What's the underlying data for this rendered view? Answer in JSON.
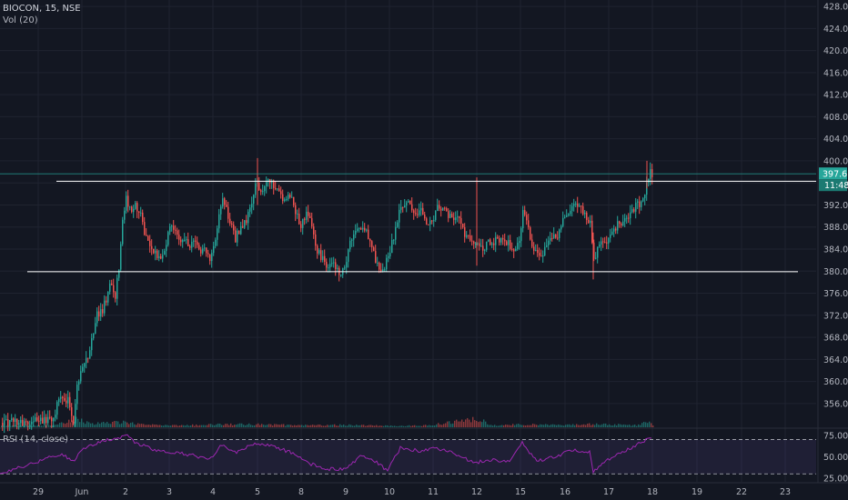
{
  "header": {
    "symbol_line": "BIOCON, 15, NSE",
    "volume_line": "Vol (20)"
  },
  "rsi_panel": {
    "label": "RSI (14, close)",
    "ticks": [
      "75.00",
      "50.00",
      "25.00"
    ]
  },
  "price_axis": {
    "ticks": [
      "428.00",
      "424.00",
      "420.00",
      "416.00",
      "412.00",
      "408.00",
      "404.00",
      "400.00",
      "396.00",
      "392.00",
      "388.00",
      "384.00",
      "380.00",
      "376.00",
      "372.00",
      "368.00",
      "364.00",
      "360.00",
      "356.00"
    ],
    "last_price_tag": "397.65",
    "countdown_tag": "11:48"
  },
  "time_axis": {
    "labels": [
      "29",
      "Jun",
      "2",
      "3",
      "4",
      "5",
      "8",
      "9",
      "10",
      "11",
      "12",
      "15",
      "16",
      "17",
      "18",
      "19",
      "22",
      "23"
    ]
  },
  "chart_data": {
    "type": "candlestick",
    "symbol": "BIOCON",
    "interval": "15",
    "exchange": "NSE",
    "price_range": [
      354,
      429
    ],
    "last_price": 397.65,
    "grid": true,
    "resistance_line": 396.3,
    "support_line": 379.9,
    "rsi_levels": [
      70,
      30
    ],
    "rsi_range": [
      25,
      78
    ],
    "price_path": [
      [
        0,
        352.5
      ],
      [
        58,
        352.8
      ],
      [
        62,
        355.5
      ],
      [
        68,
        357.5
      ],
      [
        74,
        356.5
      ],
      [
        80,
        353
      ],
      [
        84,
        360
      ],
      [
        90,
        362
      ],
      [
        95,
        364
      ],
      [
        100,
        368
      ],
      [
        106,
        372
      ],
      [
        112,
        373
      ],
      [
        116,
        375
      ],
      [
        122,
        378
      ],
      [
        126,
        375
      ],
      [
        130,
        381
      ],
      [
        134,
        389
      ],
      [
        138,
        393
      ],
      [
        142,
        391
      ],
      [
        148,
        392
      ],
      [
        154,
        390
      ],
      [
        160,
        386
      ],
      [
        168,
        384
      ],
      [
        176,
        382
      ],
      [
        182,
        385
      ],
      [
        188,
        389
      ],
      [
        194,
        386
      ],
      [
        200,
        385
      ],
      [
        210,
        385
      ],
      [
        220,
        384
      ],
      [
        226,
        384
      ],
      [
        230,
        382
      ],
      [
        236,
        386
      ],
      [
        240,
        391
      ],
      [
        244,
        394
      ],
      [
        248,
        391
      ],
      [
        252,
        389
      ],
      [
        258,
        386
      ],
      [
        264,
        388
      ],
      [
        270,
        389
      ],
      [
        276,
        392
      ],
      [
        280,
        396
      ],
      [
        284,
        395
      ],
      [
        288,
        394
      ],
      [
        294,
        397
      ],
      [
        300,
        395
      ],
      [
        306,
        394
      ],
      [
        312,
        393
      ],
      [
        318,
        394
      ],
      [
        324,
        391
      ],
      [
        330,
        388
      ],
      [
        336,
        391
      ],
      [
        342,
        388
      ],
      [
        348,
        384
      ],
      [
        354,
        382
      ],
      [
        360,
        381
      ],
      [
        366,
        381
      ],
      [
        372,
        380
      ],
      [
        378,
        380
      ],
      [
        384,
        385
      ],
      [
        390,
        387
      ],
      [
        396,
        388
      ],
      [
        402,
        387
      ],
      [
        408,
        384
      ],
      [
        414,
        381
      ],
      [
        420,
        380
      ],
      [
        426,
        383
      ],
      [
        432,
        386
      ],
      [
        438,
        391
      ],
      [
        444,
        392
      ],
      [
        450,
        392
      ],
      [
        456,
        390
      ],
      [
        462,
        391
      ],
      [
        468,
        389
      ],
      [
        474,
        389
      ],
      [
        480,
        392
      ],
      [
        486,
        391
      ],
      [
        492,
        390
      ],
      [
        498,
        390
      ],
      [
        504,
        389
      ],
      [
        510,
        387
      ],
      [
        516,
        386
      ],
      [
        522,
        385
      ],
      [
        528,
        384
      ],
      [
        534,
        385
      ],
      [
        540,
        385
      ],
      [
        546,
        386
      ],
      [
        552,
        386
      ],
      [
        558,
        385
      ],
      [
        564,
        384
      ],
      [
        570,
        386
      ],
      [
        574,
        391
      ],
      [
        578,
        389
      ],
      [
        584,
        385
      ],
      [
        590,
        383
      ],
      [
        596,
        383
      ],
      [
        602,
        385
      ],
      [
        608,
        386
      ],
      [
        614,
        387
      ],
      [
        620,
        390
      ],
      [
        626,
        391
      ],
      [
        632,
        392
      ],
      [
        638,
        391
      ],
      [
        644,
        390
      ],
      [
        648,
        389
      ],
      [
        652,
        382
      ],
      [
        656,
        384
      ],
      [
        660,
        385
      ],
      [
        664,
        385
      ],
      [
        670,
        387
      ],
      [
        676,
        388
      ],
      [
        682,
        389
      ],
      [
        688,
        390
      ],
      [
        694,
        391
      ],
      [
        700,
        392
      ],
      [
        706,
        393
      ],
      [
        710,
        396
      ],
      [
        714,
        398
      ],
      [
        717,
        397.65
      ]
    ],
    "rsi_path": [
      [
        0,
        30
      ],
      [
        30,
        40
      ],
      [
        50,
        48
      ],
      [
        70,
        52
      ],
      [
        80,
        44
      ],
      [
        90,
        57
      ],
      [
        100,
        63
      ],
      [
        110,
        68
      ],
      [
        120,
        70
      ],
      [
        130,
        72
      ],
      [
        140,
        74
      ],
      [
        150,
        66
      ],
      [
        170,
        58
      ],
      [
        190,
        55
      ],
      [
        210,
        52
      ],
      [
        230,
        47
      ],
      [
        244,
        64
      ],
      [
        260,
        55
      ],
      [
        280,
        66
      ],
      [
        300,
        62
      ],
      [
        320,
        55
      ],
      [
        340,
        42
      ],
      [
        360,
        36
      ],
      [
        380,
        35
      ],
      [
        396,
        51
      ],
      [
        410,
        46
      ],
      [
        426,
        34
      ],
      [
        440,
        60
      ],
      [
        460,
        57
      ],
      [
        480,
        60
      ],
      [
        500,
        54
      ],
      [
        520,
        43
      ],
      [
        540,
        46
      ],
      [
        560,
        44
      ],
      [
        574,
        66
      ],
      [
        590,
        45
      ],
      [
        610,
        50
      ],
      [
        630,
        58
      ],
      [
        648,
        56
      ],
      [
        652,
        32
      ],
      [
        670,
        48
      ],
      [
        690,
        58
      ],
      [
        706,
        68
      ],
      [
        717,
        73
      ]
    ],
    "volume_profile": [
      [
        0,
        0.15
      ],
      [
        60,
        0.2
      ],
      [
        84,
        0.9
      ],
      [
        100,
        0.35
      ],
      [
        134,
        0.55
      ],
      [
        160,
        0.25
      ],
      [
        200,
        0.2
      ],
      [
        240,
        0.3
      ],
      [
        284,
        0.3
      ],
      [
        330,
        0.2
      ],
      [
        380,
        0.25
      ],
      [
        420,
        0.15
      ],
      [
        470,
        0.2
      ],
      [
        524,
        0.9
      ],
      [
        540,
        0.2
      ],
      [
        572,
        0.3
      ],
      [
        620,
        0.2
      ],
      [
        650,
        0.35
      ],
      [
        700,
        0.2
      ],
      [
        711,
        0.55
      ],
      [
        717,
        0.25
      ]
    ],
    "time_positions": [
      [
        "29",
        42
      ],
      [
        "Jun",
        90
      ],
      [
        "2",
        138
      ],
      [
        "3",
        186
      ],
      [
        "4",
        234
      ],
      [
        "5",
        283
      ],
      [
        "8",
        331
      ],
      [
        "9",
        380
      ],
      [
        "10",
        428
      ],
      [
        "11",
        476
      ],
      [
        "12",
        524
      ],
      [
        "15",
        572
      ],
      [
        "16",
        621
      ],
      [
        "17",
        669
      ],
      [
        "18",
        717
      ],
      [
        "19",
        766
      ],
      [
        "22",
        815
      ],
      [
        "23",
        863
      ]
    ]
  }
}
